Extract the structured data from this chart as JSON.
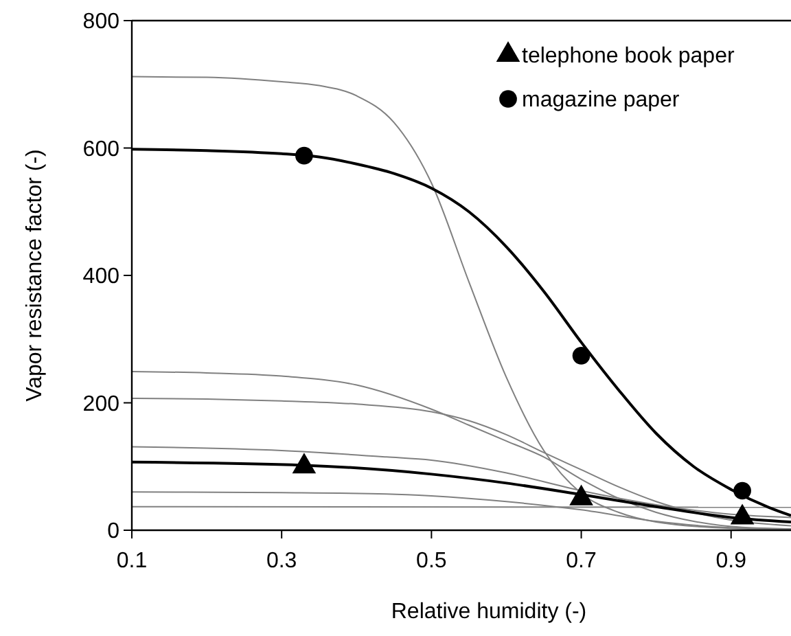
{
  "chart_data": {
    "type": "line",
    "xlabel": "Relative humidity (-)",
    "ylabel": "Vapor resistance factor (-)",
    "xlim": [
      0.1,
      0.98
    ],
    "xticks": [
      0.1,
      0.3,
      0.5,
      0.7,
      0.9
    ],
    "ylim": [
      0,
      800
    ],
    "yticks": [
      0,
      200,
      400,
      600,
      800
    ],
    "grid": false,
    "legend": "top right",
    "series": [
      {
        "color": "#808080",
        "x": [
          0.1,
          0.2,
          0.3,
          0.35,
          0.4,
          0.45,
          0.5,
          0.55,
          0.6,
          0.65,
          0.7,
          0.75,
          0.8,
          0.9,
          0.98
        ],
        "values": [
          712,
          711,
          704,
          698,
          682,
          640,
          545,
          390,
          240,
          125,
          58,
          28,
          13,
          3,
          1
        ]
      },
      {
        "color": "#808080",
        "x": [
          0.1,
          0.2,
          0.3,
          0.4,
          0.5,
          0.55,
          0.6,
          0.65,
          0.7,
          0.75,
          0.8,
          0.85,
          0.9,
          0.98
        ],
        "values": [
          249,
          247,
          242,
          228,
          190,
          165,
          140,
          115,
          80,
          50,
          28,
          14,
          6,
          2
        ]
      },
      {
        "color": "#808080",
        "x": [
          0.1,
          0.2,
          0.3,
          0.4,
          0.5,
          0.55,
          0.6,
          0.65,
          0.7,
          0.75,
          0.8,
          0.85,
          0.9,
          0.98
        ],
        "values": [
          207,
          206,
          203,
          198,
          186,
          172,
          150,
          122,
          95,
          68,
          45,
          28,
          16,
          7
        ]
      },
      {
        "color": "#808080",
        "x": [
          0.1,
          0.3,
          0.44,
          0.5,
          0.6,
          0.7,
          0.8,
          0.9,
          0.98
        ],
        "values": [
          131,
          125,
          115,
          110,
          90,
          62,
          40,
          25,
          20
        ]
      },
      {
        "color": "#808080",
        "x": [
          0.1,
          0.3,
          0.44,
          0.5,
          0.6,
          0.7,
          0.8,
          0.9,
          0.98
        ],
        "values": [
          60,
          59,
          57,
          54,
          45,
          32,
          14,
          4,
          2
        ]
      },
      {
        "color": "#808080",
        "x": [
          0.1,
          0.98
        ],
        "values": [
          37,
          36
        ]
      },
      {
        "color": "#000000",
        "x": [
          0.1,
          0.2,
          0.3,
          0.35,
          0.4,
          0.45,
          0.5,
          0.55,
          0.6,
          0.65,
          0.7,
          0.75,
          0.8,
          0.85,
          0.9,
          0.95,
          0.98
        ],
        "values": [
          598,
          596,
          591,
          586,
          575,
          560,
          537,
          500,
          445,
          375,
          295,
          220,
          152,
          100,
          64,
          36,
          23
        ]
      },
      {
        "color": "#000000",
        "x": [
          0.1,
          0.33,
          0.5,
          0.6,
          0.7,
          0.8,
          0.9,
          0.98
        ],
        "values": [
          107,
          102,
          88,
          74,
          56,
          37,
          20,
          13
        ]
      },
      {
        "type": "scatter",
        "name": "telephone book paper",
        "color": "#000000",
        "marker": "triangle",
        "x": [
          0.33,
          0.7,
          0.915
        ],
        "values": [
          100,
          50,
          20
        ]
      },
      {
        "type": "scatter",
        "name": "magazine paper",
        "color": "#000000",
        "marker": "circle",
        "x": [
          0.33,
          0.7,
          0.915
        ],
        "values": [
          588,
          274,
          62
        ]
      }
    ]
  }
}
